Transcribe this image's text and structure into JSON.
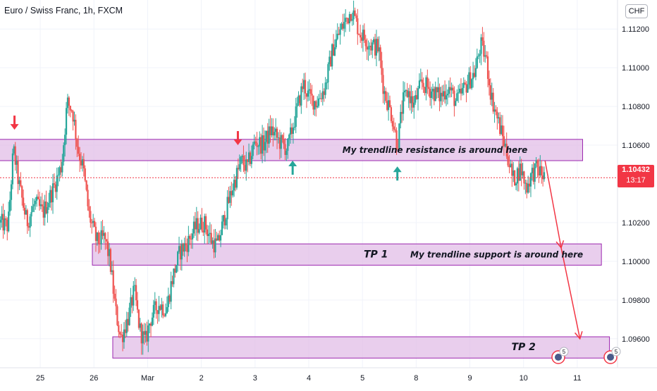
{
  "header": {
    "title": "Euro / Swiss Franc, 1h, FXCM",
    "currency": "CHF"
  },
  "price_tag": {
    "price": "1.10432",
    "countdown": "13:17"
  },
  "colors": {
    "up": "#26a69a",
    "down": "#ef5350",
    "zone_fill": "#e1bee7",
    "zone_border": "#9c27b0",
    "arrow_red": "#f23645",
    "arrow_green": "#26a69a",
    "price_line": "#f23645"
  },
  "events": {
    "badge_count": "5"
  },
  "chart_data": {
    "type": "candlestick",
    "title": "Euro / Swiss Franc, 1h, FXCM",
    "ylim": [
      1.0945,
      1.1135
    ],
    "xlim": [
      0,
      11.5
    ],
    "yticks": [
      {
        "value": 1.112,
        "label": "1.11200"
      },
      {
        "value": 1.11,
        "label": "1.11000"
      },
      {
        "value": 1.108,
        "label": "1.10800"
      },
      {
        "value": 1.106,
        "label": "1.10600"
      },
      {
        "value": 1.102,
        "label": "1.10200"
      },
      {
        "value": 1.1,
        "label": "1.10000"
      },
      {
        "value": 1.098,
        "label": "1.09800"
      },
      {
        "value": 1.096,
        "label": "1.09600"
      }
    ],
    "xticks": [
      {
        "pos": 0.75,
        "label": "25"
      },
      {
        "pos": 1.75,
        "label": "26"
      },
      {
        "pos": 2.75,
        "label": "Mar"
      },
      {
        "pos": 3.75,
        "label": "2"
      },
      {
        "pos": 4.75,
        "label": "3"
      },
      {
        "pos": 5.75,
        "label": "4"
      },
      {
        "pos": 6.75,
        "label": "5"
      },
      {
        "pos": 7.75,
        "label": "8"
      },
      {
        "pos": 8.75,
        "label": "9"
      },
      {
        "pos": 9.75,
        "label": "10"
      },
      {
        "pos": 10.75,
        "label": "11"
      }
    ],
    "last_price": 1.10432,
    "path": [
      [
        0.0,
        1.102
      ],
      [
        0.15,
        1.1018
      ],
      [
        0.25,
        1.1058
      ],
      [
        0.35,
        1.104
      ],
      [
        0.5,
        1.102
      ],
      [
        0.65,
        1.103
      ],
      [
        0.8,
        1.1025
      ],
      [
        1.0,
        1.1038
      ],
      [
        1.15,
        1.105
      ],
      [
        1.25,
        1.1082
      ],
      [
        1.35,
        1.1078
      ],
      [
        1.45,
        1.1058
      ],
      [
        1.55,
        1.1048
      ],
      [
        1.65,
        1.1025
      ],
      [
        1.8,
        1.101
      ],
      [
        1.95,
        1.1012
      ],
      [
        2.05,
        1.1
      ],
      [
        2.15,
        1.0975
      ],
      [
        2.25,
        1.096
      ],
      [
        2.4,
        1.0972
      ],
      [
        2.5,
        1.0985
      ],
      [
        2.6,
        1.0965
      ],
      [
        2.7,
        1.0958
      ],
      [
        2.8,
        1.097
      ],
      [
        2.95,
        1.0978
      ],
      [
        3.1,
        1.0975
      ],
      [
        3.2,
        1.099
      ],
      [
        3.35,
        1.1005
      ],
      [
        3.5,
        1.101
      ],
      [
        3.65,
        1.1018
      ],
      [
        3.8,
        1.102
      ],
      [
        3.95,
        1.101
      ],
      [
        4.05,
        1.1008
      ],
      [
        4.2,
        1.1025
      ],
      [
        4.35,
        1.104
      ],
      [
        4.5,
        1.1052
      ],
      [
        4.6,
        1.1048
      ],
      [
        4.75,
        1.1062
      ],
      [
        4.9,
        1.106
      ],
      [
        5.05,
        1.1068
      ],
      [
        5.2,
        1.1062
      ],
      [
        5.35,
        1.1058
      ],
      [
        5.5,
        1.1075
      ],
      [
        5.65,
        1.1092
      ],
      [
        5.75,
        1.1085
      ],
      [
        5.9,
        1.1082
      ],
      [
        6.05,
        1.109
      ],
      [
        6.2,
        1.111
      ],
      [
        6.35,
        1.112
      ],
      [
        6.45,
        1.1125
      ],
      [
        6.55,
        1.113
      ],
      [
        6.7,
        1.1118
      ],
      [
        6.9,
        1.1112
      ],
      [
        7.05,
        1.111
      ],
      [
        7.15,
        1.1088
      ],
      [
        7.3,
        1.1075
      ],
      [
        7.4,
        1.106
      ],
      [
        7.5,
        1.1082
      ],
      [
        7.6,
        1.1088
      ],
      [
        7.7,
        1.108
      ],
      [
        7.85,
        1.1092
      ],
      [
        8.05,
        1.1088
      ],
      [
        8.2,
        1.1085
      ],
      [
        8.35,
        1.109
      ],
      [
        8.5,
        1.1082
      ],
      [
        8.7,
        1.1092
      ],
      [
        8.85,
        1.1098
      ],
      [
        8.95,
        1.1112
      ],
      [
        9.05,
        1.1105
      ],
      [
        9.15,
        1.1085
      ],
      [
        9.3,
        1.107
      ],
      [
        9.45,
        1.1055
      ],
      [
        9.55,
        1.1042
      ],
      [
        9.7,
        1.1048
      ],
      [
        9.8,
        1.1038
      ],
      [
        9.9,
        1.1045
      ],
      [
        10.0,
        1.1048
      ],
      [
        10.15,
        1.1043
      ]
    ],
    "zones": [
      {
        "name": "resistance",
        "x0": -0.05,
        "x1": 10.85,
        "y0": 1.1052,
        "y1": 1.1063
      },
      {
        "name": "tp1",
        "x0": 1.72,
        "x1": 11.2,
        "y0": 1.0998,
        "y1": 1.1009
      },
      {
        "name": "tp2",
        "x0": 2.1,
        "x1": 11.35,
        "y0": 1.095,
        "y1": 1.0961
      }
    ],
    "annotations": [
      {
        "text": "My trendline resistance is around here",
        "x": 8.1,
        "y": 1.10575
      },
      {
        "text": "TP 1",
        "x": 7.0,
        "y": 1.10035
      },
      {
        "text": "My trendline support is around here",
        "x": 9.25,
        "y": 1.10035
      },
      {
        "text": "TP 2",
        "x": 9.75,
        "y": 1.09555
      }
    ],
    "signal_arrows": [
      {
        "dir": "down",
        "x": 0.27,
        "y": 1.1068
      },
      {
        "dir": "down",
        "x": 4.43,
        "y": 1.106
      },
      {
        "dir": "up",
        "x": 5.45,
        "y": 1.1052
      },
      {
        "dir": "up",
        "x": 7.4,
        "y": 1.1049
      }
    ],
    "projection": [
      [
        10.15,
        1.1052
      ],
      [
        10.45,
        1.1007
      ],
      [
        10.8,
        1.096
      ]
    ]
  }
}
